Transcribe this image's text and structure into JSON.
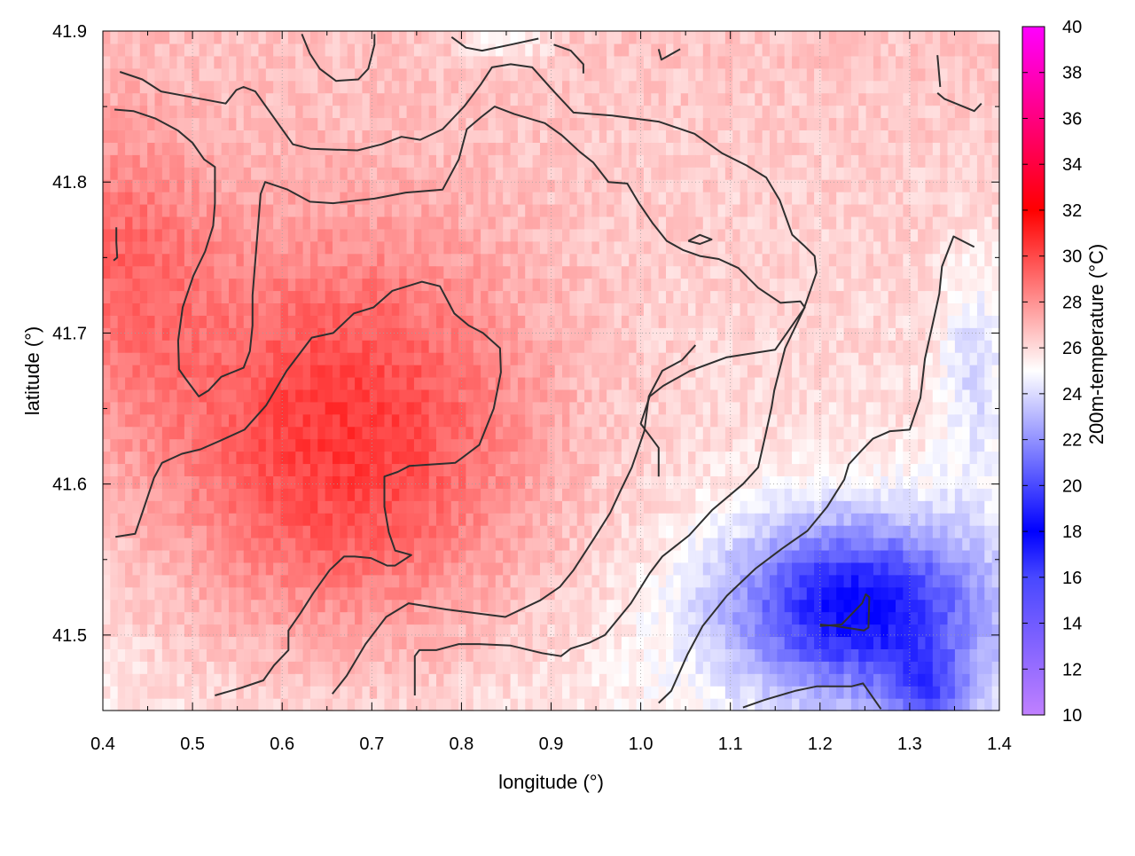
{
  "chart_data": {
    "type": "heatmap",
    "title": "",
    "xlabel": "longitude (°)",
    "ylabel": "latitude (°)",
    "colorbar_label": "200m-temperature (°C)",
    "xlim": [
      0.4,
      1.4
    ],
    "ylim": [
      41.45,
      41.9
    ],
    "x_ticks": [
      "0.4",
      "0.5",
      "0.6",
      "0.7",
      "0.8",
      "0.9",
      "1.0",
      "1.1",
      "1.2",
      "1.3",
      "1.4"
    ],
    "y_ticks": [
      "41.5",
      "41.6",
      "41.7",
      "41.8",
      "41.9"
    ],
    "cbar_range": [
      10,
      40
    ],
    "cbar_ticks": [
      "10",
      "12",
      "14",
      "16",
      "18",
      "20",
      "22",
      "24",
      "26",
      "28",
      "30",
      "32",
      "34",
      "36",
      "38",
      "40"
    ],
    "colormap": [
      {
        "value": 10,
        "color": "#c080ff"
      },
      {
        "value": 16,
        "color": "#4848ff"
      },
      {
        "value": 18,
        "color": "#0000ff"
      },
      {
        "value": 25,
        "color": "#ffffff"
      },
      {
        "value": 32,
        "color": "#ff0000"
      },
      {
        "value": 40,
        "color": "#ff00ff"
      }
    ],
    "grid": true,
    "grid_style": "dotted",
    "field_model": {
      "base": 25.4,
      "north_to_south_gradient": 1.2,
      "warm_centers": [
        {
          "lon": 0.67,
          "lat": 41.63,
          "amp": 4.6,
          "spread_lon": 0.22,
          "spread_lat": 0.14
        },
        {
          "lon": 0.42,
          "lat": 41.75,
          "amp": 2.5,
          "spread_lon": 0.1,
          "spread_lat": 0.1
        }
      ],
      "cool_centers": [
        {
          "lon": 1.25,
          "lat": 41.52,
          "amp": 7.5,
          "spread_lon": 0.15,
          "spread_lat": 0.06
        },
        {
          "lon": 1.33,
          "lat": 41.46,
          "amp": 3.5,
          "spread_lon": 0.05,
          "spread_lat": 0.03
        },
        {
          "lon": 0.85,
          "lat": 41.9,
          "amp": 1.5,
          "spread_lon": 0.05,
          "spread_lat": 0.01
        },
        {
          "lon": 1.38,
          "lat": 41.68,
          "amp": 2.0,
          "spread_lon": 0.04,
          "spread_lat": 0.08
        }
      ],
      "noise_amplitude": 0.6,
      "grid_step": 0.00833
    },
    "contours": [
      [
        [
          0.419,
          41.873
        ],
        [
          0.444,
          41.868
        ],
        [
          0.465,
          41.86
        ],
        [
          0.492,
          41.857
        ],
        [
          0.537,
          41.852
        ],
        [
          0.549,
          41.861
        ],
        [
          0.557,
          41.863
        ],
        [
          0.57,
          41.86
        ],
        [
          0.612,
          41.825
        ],
        [
          0.632,
          41.822
        ],
        [
          0.684,
          41.821
        ],
        [
          0.711,
          41.825
        ],
        [
          0.733,
          41.83
        ],
        [
          0.754,
          41.828
        ],
        [
          0.779,
          41.835
        ],
        [
          0.803,
          41.85
        ],
        [
          0.822,
          41.865
        ],
        [
          0.834,
          41.876
        ],
        [
          0.855,
          41.878
        ],
        [
          0.879,
          41.876
        ],
        [
          0.9,
          41.862
        ],
        [
          0.925,
          41.846
        ],
        [
          0.968,
          41.844
        ],
        [
          1.02,
          41.84
        ],
        [
          1.06,
          41.832
        ],
        [
          1.091,
          41.819
        ],
        [
          1.118,
          41.811
        ],
        [
          1.14,
          41.803
        ],
        [
          1.155,
          41.788
        ],
        [
          1.169,
          41.765
        ],
        [
          1.182,
          41.758
        ],
        [
          1.194,
          41.751
        ],
        [
          1.196,
          41.74
        ],
        [
          1.182,
          41.716
        ],
        [
          1.161,
          41.69
        ],
        [
          1.149,
          41.662
        ],
        [
          1.146,
          41.651
        ],
        [
          1.139,
          41.632
        ],
        [
          1.131,
          41.611
        ],
        [
          1.114,
          41.6
        ],
        [
          1.08,
          41.583
        ],
        [
          1.054,
          41.566
        ],
        [
          1.024,
          41.552
        ],
        [
          1.01,
          41.541
        ],
        [
          0.989,
          41.521
        ],
        [
          0.96,
          41.5
        ],
        [
          0.943,
          41.495
        ],
        [
          0.922,
          41.491
        ],
        [
          0.911,
          41.486
        ],
        [
          0.89,
          41.488
        ],
        [
          0.855,
          41.493
        ],
        [
          0.82,
          41.494
        ],
        [
          0.797,
          41.494
        ],
        [
          0.772,
          41.49
        ],
        [
          0.753,
          41.49
        ],
        [
          0.748,
          41.486
        ],
        [
          0.748,
          41.47
        ],
        [
          0.748,
          41.46
        ]
      ],
      [
        [
          0.413,
          41.848
        ],
        [
          0.434,
          41.847
        ],
        [
          0.459,
          41.842
        ],
        [
          0.484,
          41.834
        ],
        [
          0.5,
          41.826
        ],
        [
          0.513,
          41.815
        ],
        [
          0.525,
          41.81
        ],
        [
          0.525,
          41.786
        ],
        [
          0.523,
          41.771
        ],
        [
          0.514,
          41.754
        ],
        [
          0.501,
          41.738
        ],
        [
          0.489,
          41.717
        ],
        [
          0.484,
          41.695
        ],
        [
          0.485,
          41.676
        ],
        [
          0.492,
          41.67
        ],
        [
          0.507,
          41.658
        ],
        [
          0.518,
          41.662
        ],
        [
          0.532,
          41.671
        ],
        [
          0.557,
          41.677
        ],
        [
          0.564,
          41.688
        ],
        [
          0.567,
          41.705
        ],
        [
          0.567,
          41.725
        ],
        [
          0.571,
          41.755
        ],
        [
          0.574,
          41.777
        ],
        [
          0.576,
          41.792
        ],
        [
          0.581,
          41.8
        ],
        [
          0.606,
          41.795
        ],
        [
          0.631,
          41.787
        ],
        [
          0.657,
          41.786
        ],
        [
          0.703,
          41.789
        ],
        [
          0.738,
          41.793
        ],
        [
          0.779,
          41.795
        ],
        [
          0.797,
          41.815
        ],
        [
          0.806,
          41.835
        ],
        [
          0.822,
          41.843
        ],
        [
          0.837,
          41.85
        ],
        [
          0.859,
          41.845
        ],
        [
          0.893,
          41.839
        ],
        [
          0.912,
          41.831
        ],
        [
          0.932,
          41.82
        ],
        [
          0.947,
          41.813
        ],
        [
          0.964,
          41.8
        ],
        [
          0.985,
          41.799
        ],
        [
          0.998,
          41.786
        ],
        [
          1.013,
          41.773
        ],
        [
          1.029,
          41.761
        ],
        [
          1.047,
          41.755
        ],
        [
          1.066,
          41.751
        ],
        [
          1.087,
          41.749
        ],
        [
          1.109,
          41.743
        ],
        [
          1.131,
          41.73
        ],
        [
          1.156,
          41.72
        ],
        [
          1.178,
          41.721
        ],
        [
          1.183,
          41.717
        ],
        [
          1.15,
          41.689
        ],
        [
          1.096,
          41.684
        ],
        [
          1.055,
          41.675
        ],
        [
          1.025,
          41.665
        ],
        [
          1.01,
          41.658
        ],
        [
          1.0,
          41.64
        ],
        [
          1.02,
          41.624
        ],
        [
          1.02,
          41.605
        ]
      ],
      [
        [
          0.414,
          41.565
        ],
        [
          0.436,
          41.567
        ],
        [
          0.444,
          41.581
        ],
        [
          0.457,
          41.604
        ],
        [
          0.466,
          41.614
        ],
        [
          0.488,
          41.62
        ],
        [
          0.509,
          41.623
        ],
        [
          0.532,
          41.629
        ],
        [
          0.558,
          41.636
        ],
        [
          0.582,
          41.652
        ],
        [
          0.605,
          41.675
        ],
        [
          0.633,
          41.697
        ],
        [
          0.657,
          41.7
        ],
        [
          0.68,
          41.713
        ],
        [
          0.702,
          41.717
        ],
        [
          0.723,
          41.728
        ],
        [
          0.756,
          41.734
        ],
        [
          0.776,
          41.731
        ],
        [
          0.792,
          41.713
        ],
        [
          0.808,
          41.705
        ],
        [
          0.824,
          41.7
        ],
        [
          0.843,
          41.69
        ],
        [
          0.844,
          41.674
        ],
        [
          0.836,
          41.65
        ],
        [
          0.82,
          41.626
        ],
        [
          0.8,
          41.617
        ],
        [
          0.793,
          41.614
        ],
        [
          0.768,
          41.613
        ],
        [
          0.742,
          41.612
        ],
        [
          0.729,
          41.608
        ],
        [
          0.714,
          41.605
        ],
        [
          0.714,
          41.585
        ],
        [
          0.719,
          41.568
        ],
        [
          0.726,
          41.556
        ],
        [
          0.744,
          41.553
        ],
        [
          0.726,
          41.546
        ],
        [
          0.717,
          41.546
        ],
        [
          0.699,
          41.551
        ],
        [
          0.681,
          41.552
        ],
        [
          0.669,
          41.552
        ],
        [
          0.653,
          41.543
        ],
        [
          0.635,
          41.528
        ],
        [
          0.621,
          41.515
        ],
        [
          0.607,
          41.503
        ],
        [
          0.607,
          41.49
        ],
        [
          0.591,
          41.48
        ],
        [
          0.579,
          41.47
        ],
        [
          0.554,
          41.465
        ],
        [
          0.525,
          41.46
        ]
      ],
      [
        [
          0.656,
          41.461
        ],
        [
          0.672,
          41.473
        ],
        [
          0.693,
          41.494
        ],
        [
          0.716,
          41.512
        ],
        [
          0.741,
          41.521
        ],
        [
          0.783,
          41.517
        ],
        [
          0.849,
          41.512
        ],
        [
          0.888,
          41.523
        ],
        [
          0.91,
          41.532
        ],
        [
          0.925,
          41.543
        ],
        [
          0.948,
          41.564
        ],
        [
          0.966,
          41.581
        ],
        [
          0.977,
          41.595
        ],
        [
          0.99,
          41.611
        ],
        [
          1.004,
          41.635
        ],
        [
          1.009,
          41.658
        ],
        [
          1.024,
          41.675
        ],
        [
          1.046,
          41.682
        ],
        [
          1.061,
          41.692
        ]
      ],
      [
        [
          1.02,
          41.455
        ],
        [
          1.034,
          41.463
        ],
        [
          1.052,
          41.487
        ],
        [
          1.069,
          41.506
        ],
        [
          1.096,
          41.526
        ],
        [
          1.128,
          41.544
        ],
        [
          1.157,
          41.557
        ],
        [
          1.186,
          41.569
        ],
        [
          1.208,
          41.585
        ],
        [
          1.227,
          41.603
        ],
        [
          1.232,
          41.613
        ],
        [
          1.246,
          41.622
        ],
        [
          1.259,
          41.63
        ],
        [
          1.278,
          41.635
        ],
        [
          1.3,
          41.636
        ],
        [
          1.312,
          41.657
        ],
        [
          1.317,
          41.683
        ],
        [
          1.326,
          41.707
        ],
        [
          1.333,
          41.726
        ],
        [
          1.336,
          41.744
        ],
        [
          1.349,
          41.764
        ],
        [
          1.372,
          41.757
        ]
      ],
      [
        [
          1.114,
          41.452
        ],
        [
          1.138,
          41.457
        ],
        [
          1.172,
          41.463
        ],
        [
          1.196,
          41.466
        ],
        [
          1.235,
          41.466
        ],
        [
          1.248,
          41.468
        ],
        [
          1.268,
          41.451
        ]
      ],
      [
        [
          1.2,
          41.506
        ],
        [
          1.224,
          41.507
        ],
        [
          1.247,
          41.521
        ],
        [
          1.251,
          41.527
        ],
        [
          1.255,
          41.525
        ],
        [
          1.254,
          41.505
        ],
        [
          1.249,
          41.503
        ],
        [
          1.217,
          41.506
        ],
        [
          1.2,
          41.507
        ]
      ],
      [
        [
          1.053,
          41.761
        ],
        [
          1.066,
          41.765
        ],
        [
          1.079,
          41.762
        ],
        [
          1.066,
          41.759
        ],
        [
          1.053,
          41.761
        ]
      ],
      [
        [
          1.331,
          41.859
        ],
        [
          1.339,
          41.855
        ],
        [
          1.372,
          41.847
        ],
        [
          1.38,
          41.852
        ]
      ],
      [
        [
          0.622,
          41.898
        ],
        [
          0.631,
          41.885
        ],
        [
          0.642,
          41.875
        ],
        [
          0.66,
          41.867
        ],
        [
          0.685,
          41.868
        ],
        [
          0.696,
          41.875
        ],
        [
          0.703,
          41.891
        ],
        [
          0.703,
          41.898
        ]
      ],
      [
        [
          0.789,
          41.896
        ],
        [
          0.805,
          41.889
        ],
        [
          0.823,
          41.887
        ],
        [
          0.855,
          41.891
        ],
        [
          0.886,
          41.895
        ]
      ],
      [
        [
          0.903,
          41.891
        ],
        [
          0.922,
          41.887
        ],
        [
          0.936,
          41.878
        ],
        [
          0.936,
          41.872
        ]
      ],
      [
        [
          1.02,
          41.888
        ],
        [
          1.023,
          41.881
        ],
        [
          1.044,
          41.888
        ]
      ],
      [
        [
          1.331,
          41.884
        ],
        [
          1.333,
          41.87
        ],
        [
          1.334,
          41.863
        ]
      ],
      [
        [
          0.415,
          41.77
        ],
        [
          0.415,
          41.76
        ],
        [
          0.416,
          41.75
        ],
        [
          0.412,
          41.748
        ]
      ]
    ]
  }
}
